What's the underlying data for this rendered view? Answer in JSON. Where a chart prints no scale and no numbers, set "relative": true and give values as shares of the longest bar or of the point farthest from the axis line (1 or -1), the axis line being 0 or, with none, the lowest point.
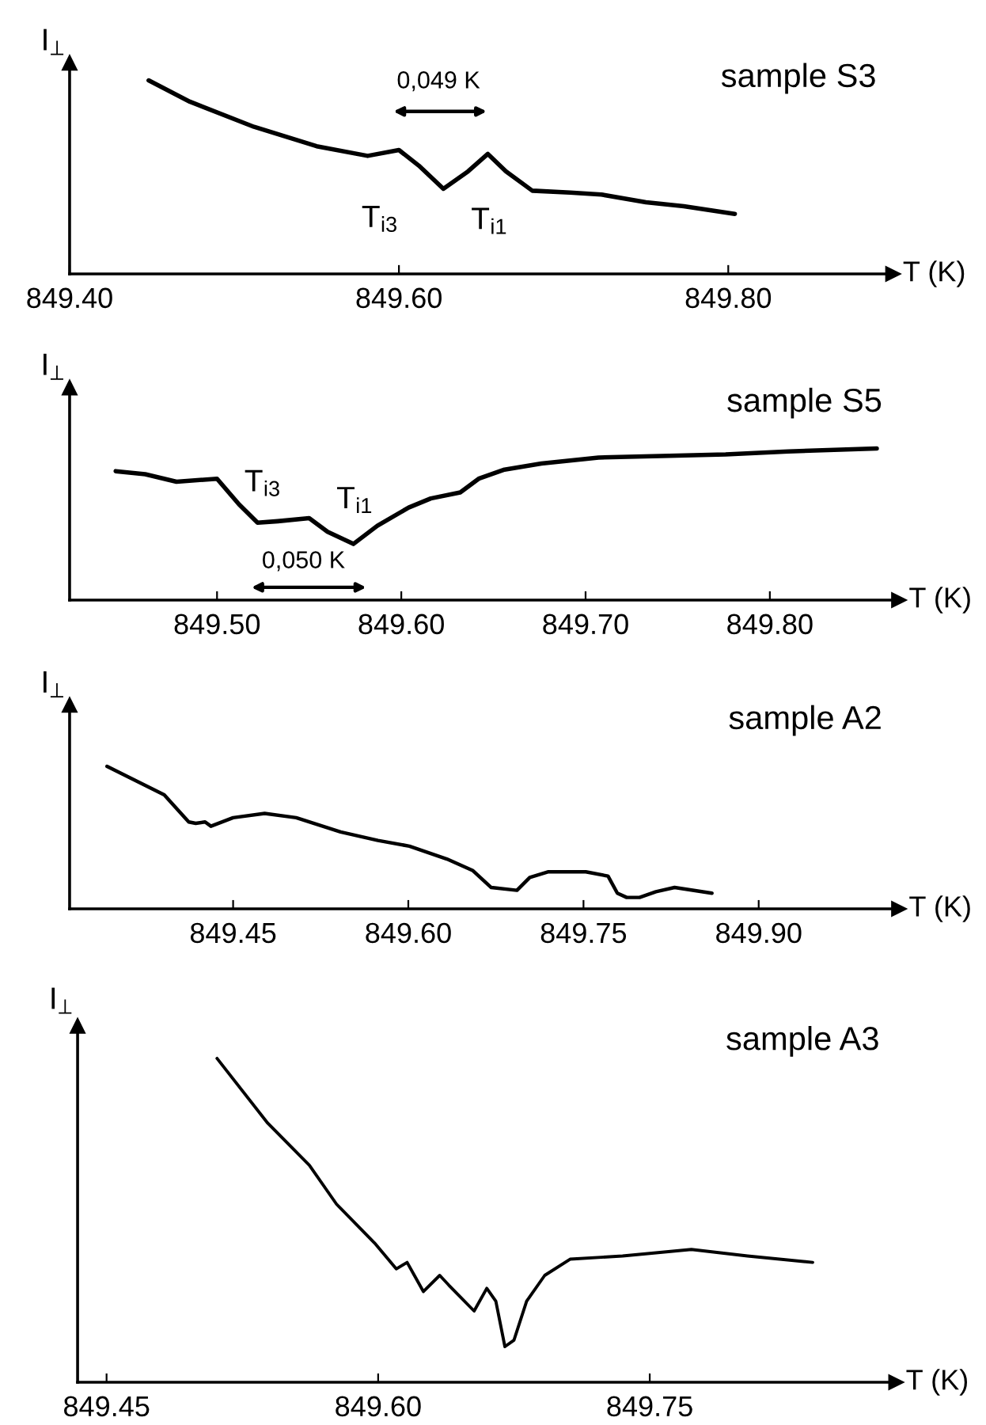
{
  "chart_data": [
    {
      "type": "line",
      "title": "sample S3",
      "xlabel": "T (K)",
      "ylabel": "I$_{⊥}$",
      "relative": true,
      "xlim": [
        849.4,
        849.9
      ],
      "xticks": [
        {
          "value": 849.4,
          "label": "849.40"
        },
        {
          "value": 849.6,
          "label": "849.60"
        },
        {
          "value": 849.8,
          "label": "849.80"
        }
      ],
      "series": [
        {
          "color": "#000000",
          "x": [
            849.448,
            849.473,
            849.512,
            849.55,
            849.581,
            849.6,
            849.612,
            849.627,
            849.642,
            849.654,
            849.665,
            849.681,
            849.704,
            849.723,
            849.75,
            849.773,
            849.804
          ],
          "values": [
            1.0,
            0.89,
            0.76,
            0.66,
            0.61,
            0.64,
            0.56,
            0.44,
            0.53,
            0.62,
            0.53,
            0.43,
            0.42,
            0.41,
            0.37,
            0.35,
            0.31
          ]
        }
      ],
      "annotations": [
        "T$_{i3}$",
        "T$_{i1}$",
        "0,049 K"
      ]
    },
    {
      "type": "line",
      "title": "sample S5",
      "xlabel": "T (K)",
      "ylabel": "I$_{⊥}$",
      "relative": true,
      "xlim": [
        849.42,
        849.87
      ],
      "xticks": [
        {
          "value": 849.5,
          "label": "849.50"
        },
        {
          "value": 849.6,
          "label": "849.60"
        },
        {
          "value": 849.7,
          "label": "849.70"
        },
        {
          "value": 849.8,
          "label": "849.80"
        }
      ],
      "series": [
        {
          "color": "#000000",
          "x": [
            849.445,
            849.461,
            849.478,
            849.5,
            849.512,
            849.522,
            849.533,
            849.55,
            849.56,
            849.574,
            849.587,
            849.604,
            849.616,
            849.632,
            849.642,
            849.656,
            849.676,
            849.707,
            849.741,
            849.776,
            849.81,
            849.858
          ],
          "values": [
            0.85,
            0.83,
            0.78,
            0.8,
            0.63,
            0.51,
            0.52,
            0.54,
            0.45,
            0.37,
            0.49,
            0.61,
            0.67,
            0.71,
            0.8,
            0.86,
            0.9,
            0.94,
            0.95,
            0.96,
            0.98,
            1.0
          ]
        }
      ],
      "annotations": [
        "T$_{i3}$",
        "T$_{i1}$",
        "0,050 K"
      ]
    },
    {
      "type": "line",
      "title": "sample A2",
      "xlabel": "T (K)",
      "ylabel": "I$_{⊥}$",
      "relative": true,
      "xlim": [
        849.31,
        850.02
      ],
      "xticks": [
        {
          "value": 849.45,
          "label": "849.45"
        },
        {
          "value": 849.6,
          "label": "849.60"
        },
        {
          "value": 849.75,
          "label": "849.75"
        },
        {
          "value": 849.9,
          "label": "849.90"
        }
      ],
      "series": [
        {
          "color": "#000000",
          "x": [
            849.342,
            849.391,
            849.412,
            849.418,
            849.426,
            849.431,
            849.45,
            849.477,
            849.504,
            849.542,
            849.574,
            849.601,
            849.633,
            849.655,
            849.671,
            849.693,
            849.704,
            849.72,
            849.752,
            849.771,
            849.779,
            849.787,
            849.798,
            849.812,
            849.828,
            849.86
          ],
          "values": [
            1.0,
            0.8,
            0.61,
            0.6,
            0.61,
            0.58,
            0.64,
            0.67,
            0.64,
            0.54,
            0.48,
            0.44,
            0.35,
            0.27,
            0.15,
            0.13,
            0.22,
            0.26,
            0.26,
            0.23,
            0.11,
            0.08,
            0.08,
            0.12,
            0.15,
            0.11
          ]
        }
      ]
    },
    {
      "type": "line",
      "title": "sample A3",
      "xlabel": "T (K)",
      "ylabel": "I$_{⊥}$",
      "relative": true,
      "xlim": [
        849.434,
        849.886
      ],
      "xticks": [
        {
          "value": 849.45,
          "label": "849.45"
        },
        {
          "value": 849.6,
          "label": "849.60"
        },
        {
          "value": 849.75,
          "label": "849.75"
        }
      ],
      "series": [
        {
          "color": "#000000",
          "x": [
            849.511,
            849.539,
            849.562,
            849.577,
            849.598,
            849.61,
            849.616,
            849.62,
            849.625,
            849.634,
            849.639,
            849.653,
            849.66,
            849.665,
            849.67,
            849.675,
            849.682,
            849.692,
            849.706,
            849.735,
            849.773,
            849.804,
            849.84
          ],
          "values": [
            1.0,
            0.8,
            0.67,
            0.55,
            0.43,
            0.35,
            0.37,
            0.33,
            0.28,
            0.33,
            0.3,
            0.22,
            0.29,
            0.25,
            0.11,
            0.13,
            0.25,
            0.33,
            0.38,
            0.39,
            0.41,
            0.39,
            0.37
          ]
        }
      ]
    }
  ]
}
